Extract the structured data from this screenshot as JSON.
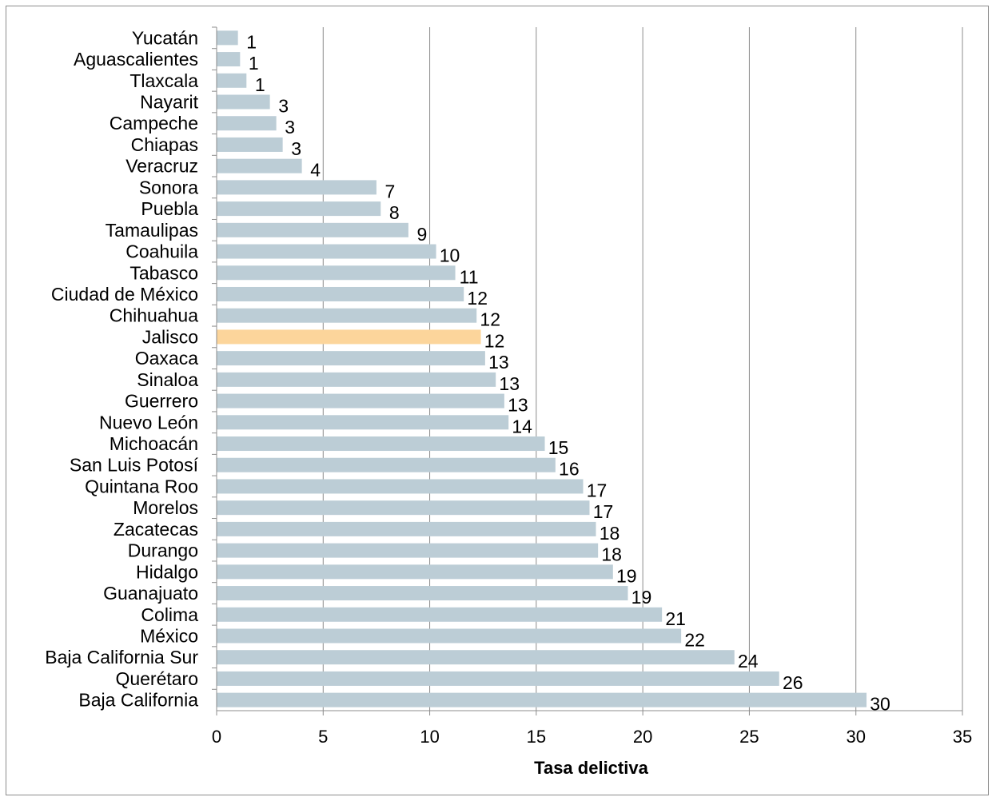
{
  "chart_data": {
    "type": "bar",
    "orientation": "horizontal",
    "title": "",
    "xlabel": "Tasa delictiva",
    "ylabel": "",
    "xlim": [
      0,
      35
    ],
    "xticks": [
      0,
      5,
      10,
      15,
      20,
      25,
      30,
      35
    ],
    "grid": "vertical",
    "legend": "none",
    "categories": [
      "Yucatán",
      "Aguascalientes",
      "Tlaxcala",
      "Nayarit",
      "Campeche",
      "Chiapas",
      "Veracruz",
      "Sonora",
      "Puebla",
      "Tamaulipas",
      "Coahuila",
      "Tabasco",
      "Ciudad de México",
      "Chihuahua",
      "Jalisco",
      "Oaxaca",
      "Sinaloa",
      "Guerrero",
      "Nuevo León",
      "Michoacán",
      "San Luis Potosí",
      "Quintana Roo",
      "Morelos",
      "Zacatecas",
      "Durango",
      "Hidalgo",
      "Guanajuato",
      "Colima",
      "México",
      "Baja California Sur",
      "Querétaro",
      "Baja California"
    ],
    "values": [
      1.0,
      1.1,
      1.4,
      2.5,
      2.8,
      3.1,
      4.0,
      7.5,
      7.7,
      9.0,
      10.3,
      11.2,
      11.6,
      12.2,
      12.4,
      12.6,
      13.1,
      13.5,
      13.7,
      15.4,
      15.9,
      17.2,
      17.5,
      17.8,
      17.9,
      18.6,
      19.3,
      20.9,
      21.8,
      24.3,
      26.4,
      30.5
    ],
    "value_labels": [
      "1",
      "1",
      "1",
      "3",
      "3",
      "3",
      "4",
      "7",
      "8",
      "9",
      "10",
      "11",
      "12",
      "12",
      "12",
      "13",
      "13",
      "13",
      "14",
      "15",
      "16",
      "17",
      "17",
      "18",
      "18",
      "19",
      "19",
      "21",
      "22",
      "24",
      "26",
      "30"
    ],
    "highlight_category": "Jalisco",
    "colors": {
      "bar": "#bccdd6",
      "highlight": "#fcd59b",
      "grid": "#8c8c8c",
      "axis": "#8c8c8c"
    }
  }
}
